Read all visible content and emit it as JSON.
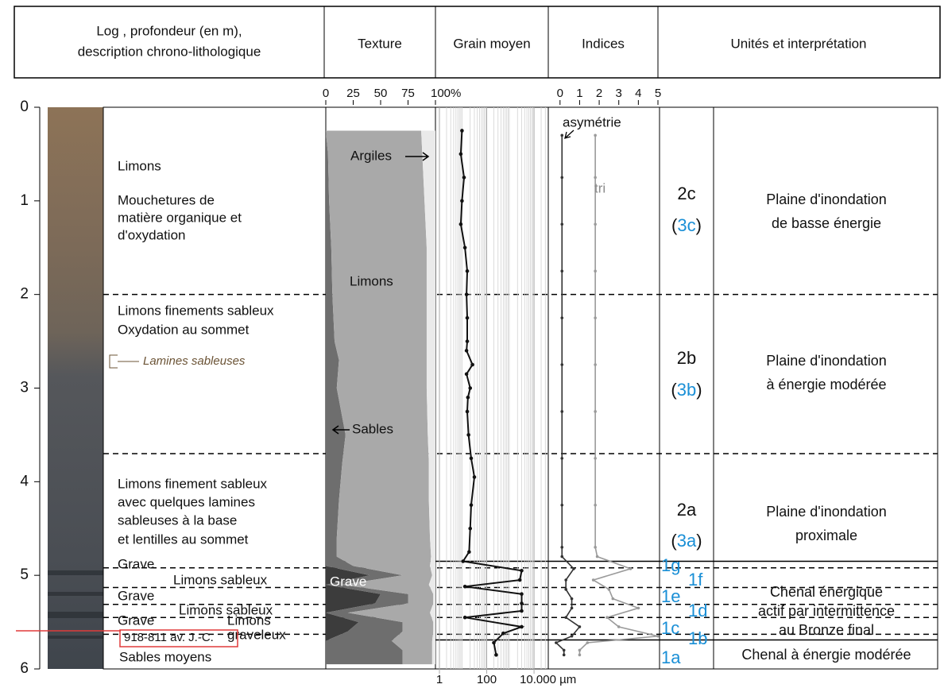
{
  "header": {
    "columns": [
      [
        "Log , profondeur (en m),",
        "description chrono-lithologique"
      ],
      [
        "Texture"
      ],
      [
        "Grain moyen"
      ],
      [
        "Indices"
      ],
      [
        "Unités et interprétation"
      ]
    ]
  },
  "depth_axis": {
    "ylim": [
      0,
      6
    ],
    "yticks": [
      0,
      1,
      2,
      3,
      4,
      5,
      6
    ]
  },
  "log_descriptions": [
    "Limons",
    "Mouchetures de",
    "matière organique et",
    "d'oxydation",
    "Limons  finements sableux",
    "Oxydation au sommet",
    "Lamines sableuses",
    "Limons finement sableux",
    "avec quelques lamines",
    "sableuses à la base",
    "et lentilles au sommet",
    "Grave",
    "Limons sableux",
    "Grave",
    "Limons sableux",
    "Grave",
    "Limons",
    "graveleux",
    "918-811 av. J.-C.",
    "Sables moyens"
  ],
  "texture": {
    "xlim": [
      0,
      100
    ],
    "xticks": [
      0,
      25,
      50,
      75,
      {
        "value": 100,
        "label": "100%"
      }
    ],
    "depths": [
      0.25,
      0.5,
      1.0,
      1.5,
      2.0,
      2.5,
      2.7,
      3.0,
      3.5,
      3.8,
      4.2,
      4.6,
      4.8,
      4.9,
      5.0,
      5.1,
      5.2,
      5.3,
      5.4,
      5.5,
      5.6,
      5.7,
      5.8,
      5.95
    ],
    "series": [
      {
        "name": "Grave",
        "color": "#3c3c3c",
        "values": [
          0,
          0,
          0,
          0,
          0,
          0,
          0,
          0,
          0,
          0,
          0,
          0,
          0,
          0,
          40,
          0,
          50,
          45,
          0,
          30,
          20,
          0,
          0,
          0
        ]
      },
      {
        "name": "Sables",
        "color": "#6e6e6e",
        "values": [
          0,
          2,
          3,
          5,
          6,
          8,
          12,
          10,
          18,
          15,
          12,
          10,
          10,
          25,
          30,
          15,
          25,
          30,
          20,
          40,
          50,
          60,
          70,
          70
        ]
      },
      {
        "name": "Limons",
        "color": "#a9a9a9",
        "values": [
          87,
          86,
          87,
          87,
          86,
          84,
          80,
          82,
          75,
          79,
          82,
          85,
          86,
          70,
          27,
          79,
          23,
          23,
          75,
          28,
          28,
          37,
          27,
          27
        ]
      },
      {
        "name": "Argiles",
        "color": "#eaeaea",
        "values": [
          13,
          12,
          10,
          8,
          8,
          8,
          8,
          8,
          7,
          6,
          6,
          5,
          4,
          5,
          3,
          6,
          2,
          2,
          5,
          2,
          2,
          3,
          3,
          3
        ]
      }
    ]
  },
  "grain": {
    "log_scale": true,
    "xlim": [
      1,
      40000
    ],
    "xticks": [
      1,
      100,
      {
        "value": 10000,
        "label": "10.000 µm"
      }
    ],
    "color": "#111111",
    "depths": [
      0.25,
      0.5,
      0.75,
      1.0,
      1.25,
      1.5,
      1.75,
      2.0,
      2.25,
      2.5,
      2.6,
      2.75,
      2.85,
      3.0,
      3.1,
      3.25,
      3.5,
      3.75,
      3.95,
      4.25,
      4.5,
      4.75,
      4.85,
      4.95,
      5.05,
      5.12,
      5.2,
      5.3,
      5.38,
      5.45,
      5.55,
      5.62,
      5.72,
      5.85
    ],
    "values": [
      9,
      8,
      11,
      9,
      8,
      12,
      15,
      14,
      15,
      15,
      14,
      25,
      14,
      20,
      16,
      15,
      17,
      22,
      30,
      22,
      20,
      18,
      10,
      3000,
      2500,
      12,
      3000,
      3000,
      3000,
      12,
      3000,
      500,
      200,
      250
    ]
  },
  "indices": {
    "xlim": [
      -0.6,
      5
    ],
    "xticks": [
      0,
      1,
      2,
      3,
      4,
      5
    ],
    "depths": [
      0.3,
      0.75,
      1.25,
      1.75,
      2.25,
      2.75,
      3.25,
      3.75,
      4.25,
      4.7,
      4.8,
      4.93,
      5.05,
      5.15,
      5.25,
      5.35,
      5.45,
      5.55,
      5.65,
      5.72,
      5.8,
      5.85
    ],
    "series": [
      {
        "name": "asymétrie",
        "color": "#333333",
        "values": [
          0.1,
          0.1,
          0.1,
          0.1,
          0.1,
          0.1,
          0.1,
          0.1,
          0.1,
          0.1,
          0.1,
          0.7,
          0.3,
          0.3,
          0.6,
          0.6,
          0.3,
          1.0,
          0.6,
          -0.2,
          0.2,
          0.2
        ]
      },
      {
        "name": "tri",
        "color": "#9a9a9a",
        "values": [
          1.8,
          1.8,
          1.8,
          1.8,
          1.8,
          1.8,
          1.8,
          1.8,
          1.8,
          1.8,
          1.9,
          3.6,
          1.7,
          2.5,
          2.7,
          4.0,
          2.4,
          3.0,
          5.0,
          1.4,
          1.0,
          1.0
        ]
      }
    ]
  },
  "boundaries": [
    {
      "depth": 2
    },
    {
      "depth": 3.7
    },
    {
      "depth": 4.85,
      "solid": true
    },
    {
      "depth": 4.92
    },
    {
      "depth": 5.13
    },
    {
      "depth": 5.31
    },
    {
      "depth": 5.45
    },
    {
      "depth": 5.63
    },
    {
      "depth": 5.69,
      "solid": true
    }
  ],
  "units": {
    "upper": [
      {
        "code": "2c",
        "alt": [
          "(",
          "3c",
          ")"
        ],
        "interpretation": [
          "Plaine d'inondation",
          "de basse énergie"
        ]
      },
      {
        "code": "2b",
        "alt": [
          "(",
          "3b",
          ")"
        ],
        "interpretation": [
          "Plaine d'inondation",
          "à énergie modérée"
        ]
      },
      {
        "code": "2a",
        "alt": [
          "(",
          "3a",
          ")"
        ],
        "interpretation": [
          "Plaine d'inondation",
          "proximale"
        ]
      }
    ],
    "lower_codes": [
      "1g",
      "1f",
      "1e",
      "1d",
      "1c",
      "1b",
      "1a"
    ],
    "lower_interpretation": [
      [
        "Chenal énergique",
        "actif par intermittence",
        "au Bronze final"
      ],
      [
        "Chenal à énergie modérée"
      ]
    ]
  }
}
